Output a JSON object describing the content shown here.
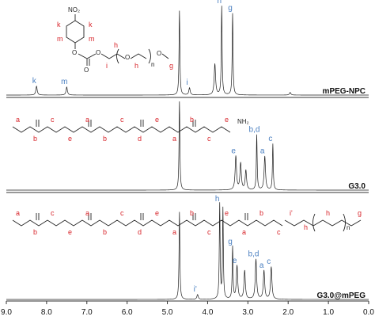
{
  "chart_data": {
    "type": "line",
    "xlabel": "",
    "ylabel": "",
    "xlim": [
      9.0,
      0.0
    ],
    "x_reversed": true,
    "x_ticks": [
      "9.0",
      "8.0",
      "7.0",
      "6.0",
      "5.0",
      "4.0",
      "3.0",
      "2.0",
      "1.0",
      "0.0"
    ],
    "grid": false,
    "series": [
      {
        "name": "mPEG-NPC",
        "peaks": [
          {
            "ppm": 8.25,
            "height": 0.1,
            "label": "k"
          },
          {
            "ppm": 7.5,
            "height": 0.09,
            "label": "m"
          },
          {
            "ppm": 4.7,
            "height": 0.95,
            "label": ""
          },
          {
            "ppm": 4.45,
            "height": 0.08,
            "label": "i"
          },
          {
            "ppm": 3.82,
            "height": 0.35,
            "label": ""
          },
          {
            "ppm": 3.65,
            "height": 1.0,
            "label": "h"
          },
          {
            "ppm": 3.38,
            "height": 0.92,
            "label": "g"
          },
          {
            "ppm": 1.95,
            "height": 0.03,
            "label": ""
          }
        ]
      },
      {
        "name": "G3.0",
        "peaks": [
          {
            "ppm": 4.7,
            "height": 1.0,
            "label": ""
          },
          {
            "ppm": 3.3,
            "height": 0.38,
            "label": "e"
          },
          {
            "ppm": 3.18,
            "height": 0.3,
            "label": ""
          },
          {
            "ppm": 3.05,
            "height": 0.22,
            "label": ""
          },
          {
            "ppm": 2.78,
            "height": 0.62,
            "label": "b,d"
          },
          {
            "ppm": 2.58,
            "height": 0.38,
            "label": "a"
          },
          {
            "ppm": 2.38,
            "height": 0.52,
            "label": "c"
          }
        ]
      },
      {
        "name": "G3.0@mPEG",
        "peaks": [
          {
            "ppm": 4.7,
            "height": 0.92,
            "label": ""
          },
          {
            "ppm": 4.25,
            "height": 0.05,
            "label": "i'"
          },
          {
            "ppm": 3.7,
            "height": 1.0,
            "label": "h"
          },
          {
            "ppm": 3.62,
            "height": 0.95,
            "label": ""
          },
          {
            "ppm": 3.38,
            "height": 0.55,
            "label": "g"
          },
          {
            "ppm": 3.27,
            "height": 0.35,
            "label": "e"
          },
          {
            "ppm": 3.08,
            "height": 0.3,
            "label": ""
          },
          {
            "ppm": 2.8,
            "height": 0.42,
            "label": "b,d"
          },
          {
            "ppm": 2.6,
            "height": 0.3,
            "label": "a"
          },
          {
            "ppm": 2.42,
            "height": 0.34,
            "label": "c"
          }
        ]
      }
    ]
  },
  "structures": {
    "npc": {
      "no2": "NO₂",
      "n": "n",
      "o_labels": [
        "O",
        "O",
        "O",
        "O",
        "O"
      ],
      "letters": [
        "k",
        "k",
        "m",
        "m",
        "i",
        "h",
        "h",
        "g"
      ]
    },
    "g30": {
      "nh2": "NH₂",
      "repeat_letters": [
        "a",
        "b",
        "c",
        "e",
        "a",
        "b",
        "c",
        "d",
        "e"
      ]
    },
    "g30mpeg": {
      "n": "n",
      "letters": [
        "i'",
        "h",
        "h",
        "g"
      ]
    }
  },
  "colors": {
    "spectrum": "#1e1e1e",
    "label_red": "#d8262c",
    "label_blue": "#4a7fc0",
    "frame": "#333333"
  }
}
